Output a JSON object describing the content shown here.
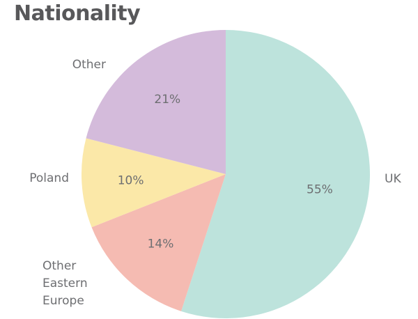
{
  "chart_data": {
    "type": "pie",
    "title": "Nationality",
    "start_angle_deg": 0,
    "direction": "clockwise",
    "slices": [
      {
        "label": "UK",
        "value": 55,
        "value_label": "55%",
        "color": "#bde3dc",
        "label_lines": [
          "UK"
        ]
      },
      {
        "label": "Other Eastern Europe",
        "value": 14,
        "value_label": "14%",
        "color": "#f5bbb2",
        "label_lines": [
          "Other",
          "Eastern",
          "Europe"
        ]
      },
      {
        "label": "Poland",
        "value": 10,
        "value_label": "10%",
        "color": "#fbe8a8",
        "label_lines": [
          "Poland"
        ]
      },
      {
        "label": "Other",
        "value": 21,
        "value_label": "21%",
        "color": "#d4bbdb",
        "label_lines": [
          "Other"
        ]
      }
    ]
  }
}
